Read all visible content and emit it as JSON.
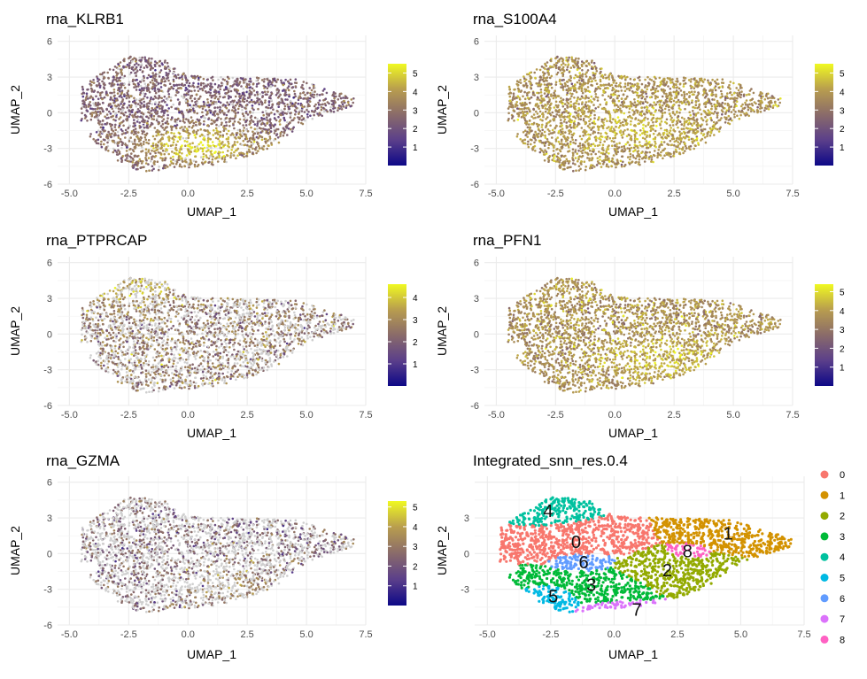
{
  "palette": {
    "grid": "#ebebeb",
    "na_grey": "#cfcfcf",
    "feature_scale": [
      "#0d0887",
      "#5b3f8a",
      "#8a6b6a",
      "#b89d4e",
      "#f0f921"
    ],
    "clusters": {
      "0": "#f8766d",
      "1": "#d39200",
      "2": "#93aa00",
      "3": "#00ba38",
      "4": "#00c19f",
      "5": "#00b9e3",
      "6": "#619cff",
      "7": "#db72fb",
      "8": "#ff61c3"
    }
  },
  "chart_data": [
    {
      "type": "scatter",
      "title": "rna_KLRB1",
      "xlabel": "UMAP_1",
      "ylabel": "UMAP_2",
      "xlim": [
        -5.5,
        7.5
      ],
      "ylim": [
        -6,
        6.5
      ],
      "xticks": [
        "-5.0",
        "-2.5",
        "0.0",
        "2.5",
        "5.0",
        "7.5"
      ],
      "xtick_values": [
        -5,
        -2.5,
        0,
        2.5,
        5,
        7.5
      ],
      "yticks": [
        "-6",
        "-3",
        "0",
        "3",
        "6"
      ],
      "ytick_values": [
        -6,
        -3,
        0,
        3,
        6
      ],
      "colorbar": {
        "min": 0,
        "max": 5.5,
        "ticks": [
          "1",
          "2",
          "3",
          "4",
          "5"
        ],
        "tick_values": [
          1,
          2,
          3,
          4,
          5
        ]
      },
      "expression_pattern": "high in lower-central region",
      "hotspot": [
        0.5,
        -2.8
      ],
      "base_level": 2.5,
      "peak_level": 5.2,
      "fraction_expressing": 0.92
    },
    {
      "type": "scatter",
      "title": "rna_S100A4",
      "xlabel": "UMAP_1",
      "ylabel": "UMAP_2",
      "xlim": [
        -5.5,
        7.5
      ],
      "ylim": [
        -6,
        6.5
      ],
      "xticks": [
        "-5.0",
        "-2.5",
        "0.0",
        "2.5",
        "5.0",
        "7.5"
      ],
      "xtick_values": [
        -5,
        -2.5,
        0,
        2.5,
        5,
        7.5
      ],
      "yticks": [
        "-6",
        "-3",
        "0",
        "3",
        "6"
      ],
      "ytick_values": [
        -6,
        -3,
        0,
        3,
        6
      ],
      "colorbar": {
        "min": 0,
        "max": 5.5,
        "ticks": [
          "1",
          "2",
          "3",
          "4",
          "5"
        ],
        "tick_values": [
          1,
          2,
          3,
          4,
          5
        ]
      },
      "expression_pattern": "high broadly, lower at top-left",
      "hotspot": [
        1,
        -1.5
      ],
      "base_level": 3.8,
      "peak_level": 4.6,
      "fraction_expressing": 1.0
    },
    {
      "type": "scatter",
      "title": "rna_PTPRCAP",
      "xlabel": "UMAP_1",
      "ylabel": "UMAP_2",
      "xlim": [
        -5.5,
        7.5
      ],
      "ylim": [
        -6,
        6.5
      ],
      "xticks": [
        "-5.0",
        "-2.5",
        "0.0",
        "2.5",
        "5.0",
        "7.5"
      ],
      "xtick_values": [
        -5,
        -2.5,
        0,
        2.5,
        5,
        7.5
      ],
      "yticks": [
        "-6",
        "-3",
        "0",
        "3",
        "6"
      ],
      "ytick_values": [
        -6,
        -3,
        0,
        3,
        6
      ],
      "colorbar": {
        "min": 0,
        "max": 4.6,
        "ticks": [
          "1",
          "2",
          "3",
          "4"
        ],
        "tick_values": [
          1,
          2,
          3,
          4
        ]
      },
      "expression_pattern": "moderate, patchy; many unexpressed cells",
      "hotspot": [
        -2.5,
        4
      ],
      "base_level": 2.6,
      "peak_level": 3.6,
      "fraction_expressing": 0.55
    },
    {
      "type": "scatter",
      "title": "rna_PFN1",
      "xlabel": "UMAP_1",
      "ylabel": "UMAP_2",
      "xlim": [
        -5.5,
        7.5
      ],
      "ylim": [
        -6,
        6.5
      ],
      "xticks": [
        "-5.0",
        "-2.5",
        "0.0",
        "2.5",
        "5.0",
        "7.5"
      ],
      "xtick_values": [
        -5,
        -2.5,
        0,
        2.5,
        5,
        7.5
      ],
      "yticks": [
        "-6",
        "-3",
        "0",
        "3",
        "6"
      ],
      "ytick_values": [
        -6,
        -3,
        0,
        3,
        6
      ],
      "colorbar": {
        "min": 0,
        "max": 5.4,
        "ticks": [
          "1",
          "2",
          "3",
          "4",
          "5"
        ],
        "tick_values": [
          1,
          2,
          3,
          4,
          5
        ]
      },
      "expression_pattern": "high broadly, lower at top-left",
      "hotspot": [
        2,
        -2
      ],
      "base_level": 3.7,
      "peak_level": 4.5,
      "fraction_expressing": 1.0
    },
    {
      "type": "scatter",
      "title": "rna_GZMA",
      "xlabel": "UMAP_1",
      "ylabel": "UMAP_2",
      "xlim": [
        -5.5,
        7.5
      ],
      "ylim": [
        -6,
        6.5
      ],
      "xticks": [
        "-5.0",
        "-2.5",
        "0.0",
        "2.5",
        "5.0",
        "7.5"
      ],
      "xtick_values": [
        -5,
        -2.5,
        0,
        2.5,
        5,
        7.5
      ],
      "yticks": [
        "-6",
        "-3",
        "0",
        "3",
        "6"
      ],
      "ytick_values": [
        -6,
        -3,
        0,
        3,
        6
      ],
      "colorbar": {
        "min": 0,
        "max": 5.3,
        "ticks": [
          "1",
          "2",
          "3",
          "4",
          "5"
        ],
        "tick_values": [
          1,
          2,
          3,
          4,
          5
        ]
      },
      "expression_pattern": "sparse, lower region only",
      "hotspot": [
        1.5,
        -2.5
      ],
      "base_level": 2.4,
      "peak_level": 3.4,
      "fraction_expressing": 0.4
    },
    {
      "type": "scatter",
      "title": "Integrated_snn_res.0.4",
      "xlabel": "UMAP_1",
      "ylabel": "UMAP_2",
      "xlim": [
        -5.5,
        7.5
      ],
      "ylim": [
        -6,
        6.5
      ],
      "xticks": [
        "-5.0",
        "-2.5",
        "0.0",
        "2.5",
        "5.0",
        "7.5"
      ],
      "xtick_values": [
        -5,
        -2.5,
        0,
        2.5,
        5,
        7.5
      ],
      "yticks": [
        "-3",
        "0",
        "3"
      ],
      "ytick_values": [
        -3,
        0,
        3
      ],
      "legend_position": "right",
      "clusters": [
        {
          "name": "0",
          "label": "0",
          "center": [
            -1.5,
            1.0
          ],
          "spread": [
            1.5,
            0.9
          ]
        },
        {
          "name": "1",
          "label": "1",
          "center": [
            4.5,
            1.7
          ],
          "spread": [
            1.3,
            0.8
          ]
        },
        {
          "name": "2",
          "label": "2",
          "center": [
            2.1,
            -1.4
          ],
          "spread": [
            1.3,
            1.0
          ]
        },
        {
          "name": "3",
          "label": "3",
          "center": [
            -0.9,
            -2.6
          ],
          "spread": [
            1.5,
            0.9
          ]
        },
        {
          "name": "4",
          "label": "4",
          "center": [
            -2.6,
            3.6
          ],
          "spread": [
            0.9,
            0.7
          ]
        },
        {
          "name": "5",
          "label": "5",
          "center": [
            -2.4,
            -3.6
          ],
          "spread": [
            0.7,
            0.8
          ]
        },
        {
          "name": "6",
          "label": "6",
          "center": [
            -1.2,
            -0.7
          ],
          "spread": [
            0.7,
            0.6
          ]
        },
        {
          "name": "7",
          "label": "7",
          "center": [
            0.9,
            -4.7
          ],
          "spread": [
            1.3,
            0.4
          ]
        },
        {
          "name": "8",
          "label": "8",
          "center": [
            2.9,
            0.2
          ],
          "spread": [
            0.5,
            0.4
          ]
        }
      ]
    }
  ]
}
